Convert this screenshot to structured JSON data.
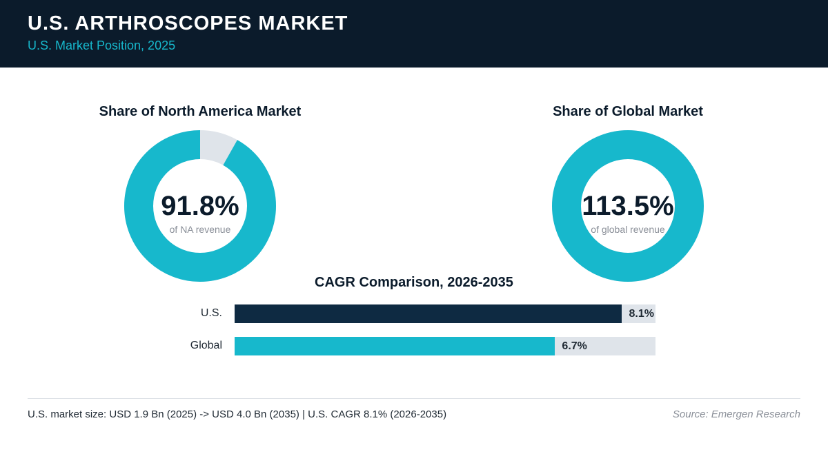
{
  "header": {
    "title": "U.S. ARTHROSCOPES MARKET",
    "subtitle": "U.S. Market Position, 2025"
  },
  "chart_data": [
    {
      "type": "pie",
      "title": "Share of North America Market",
      "value_label": "91.8%",
      "caption": "of NA revenue",
      "value": 91.8,
      "max": 100
    },
    {
      "type": "pie",
      "title": "Share of Global Market",
      "value_label": "113.5%",
      "caption": "of global revenue",
      "value": 113.5,
      "max": 100
    },
    {
      "type": "bar",
      "title": "CAGR Comparison, 2026-2035",
      "categories": [
        "U.S.",
        "Global"
      ],
      "values": [
        8.1,
        6.7
      ],
      "value_labels": [
        "8.1%",
        "6.7%"
      ],
      "xlim": [
        0,
        8.8
      ]
    }
  ],
  "colors": {
    "accent": "#17b8cc",
    "dark": "#0e2a42",
    "track": "#dfe4ea",
    "header_bg": "#0b1b2b"
  },
  "footer": {
    "note": "U.S. market size: USD 1.9 Bn (2025) -> USD 4.0 Bn (2035)  |  U.S. CAGR 8.1% (2026-2035)",
    "source": "Source: Emergen Research"
  }
}
